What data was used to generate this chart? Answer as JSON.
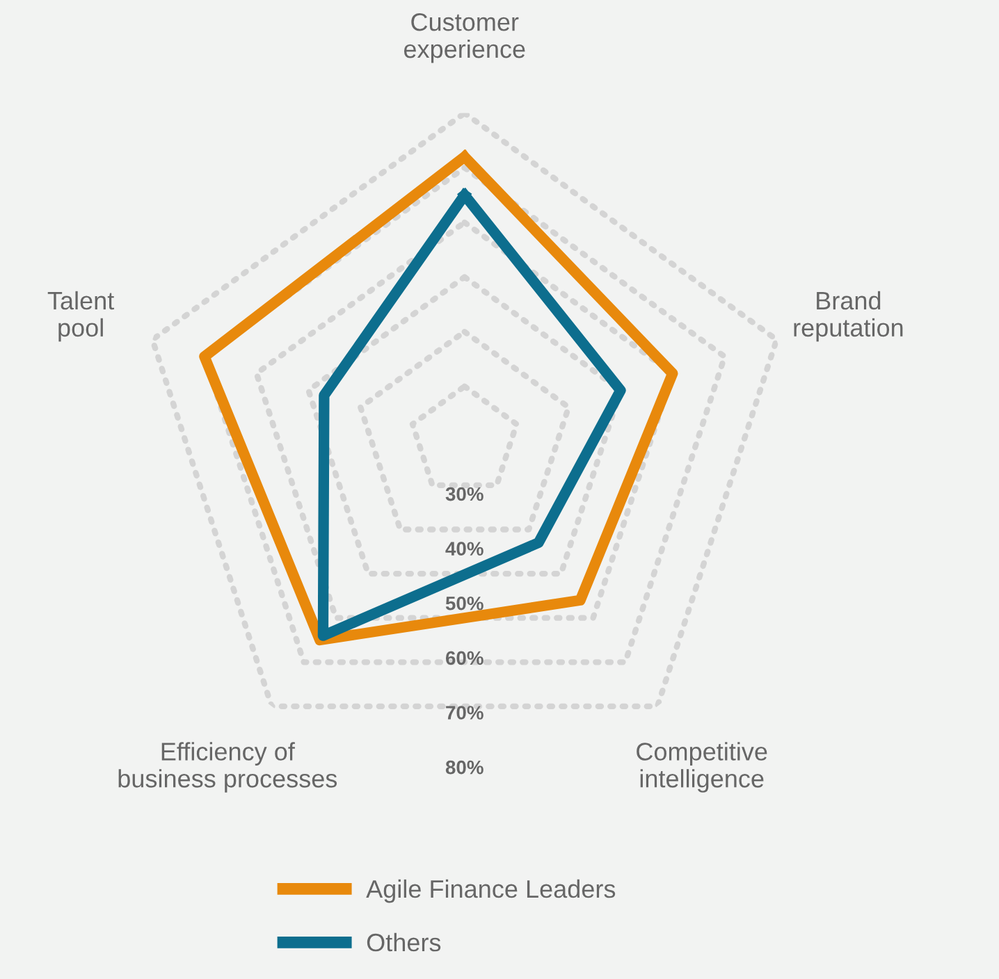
{
  "chart_data": {
    "type": "radar",
    "categories": [
      "Customer\nexperience",
      "Brand\nreputation",
      "Competitive\nintelligence",
      "Efficiency of\nbusiness processes",
      "Talent\npool"
    ],
    "series": [
      {
        "name": "Agile Finance Leaders",
        "color": "#e8890c",
        "values": [
          72,
          60,
          56,
          65,
          70
        ]
      },
      {
        "name": "Others",
        "color": "#0d6e8e",
        "values": [
          65,
          50,
          43,
          64,
          47
        ]
      }
    ],
    "ylim": [
      20,
      80
    ],
    "yticks": [
      {
        "value": 30,
        "label": "30%"
      },
      {
        "value": 40,
        "label": "40%"
      },
      {
        "value": 50,
        "label": "50%"
      },
      {
        "value": 60,
        "label": "60%"
      },
      {
        "value": 70,
        "label": "70%"
      },
      {
        "value": 80,
        "label": "80%"
      }
    ],
    "legend": "bottom",
    "grid": true,
    "marker": "none",
    "line_style": "solid"
  }
}
